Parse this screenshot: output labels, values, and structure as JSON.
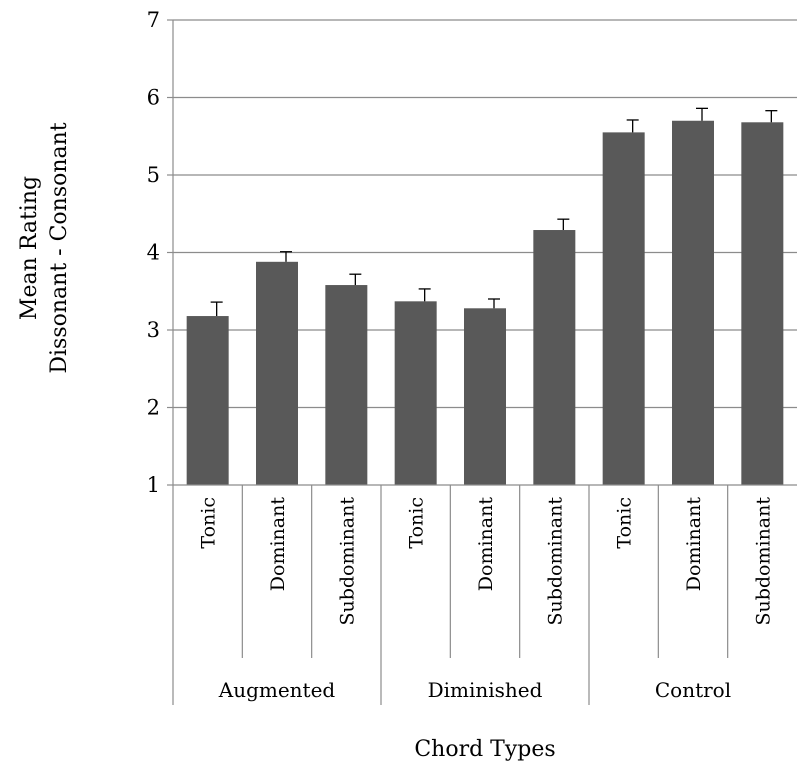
{
  "chart_data": {
    "type": "bar",
    "xlabel": "Chord Types",
    "ylabel": [
      "Mean Rating",
      "Dissonant - Consonant"
    ],
    "ylim": [
      1,
      7
    ],
    "yticks": [
      1,
      2,
      3,
      4,
      5,
      6,
      7
    ],
    "grid": true,
    "legend": "none",
    "bar_color": "#595959",
    "groups": [
      {
        "name": "Augmented",
        "categories": [
          "Tonic",
          "Dominant",
          "Subdominant"
        ]
      },
      {
        "name": "Diminished",
        "categories": [
          "Tonic",
          "Dominant",
          "Subdominant"
        ]
      },
      {
        "name": "Control",
        "categories": [
          "Tonic",
          "Dominant",
          "Subdominant"
        ]
      }
    ],
    "values": [
      3.18,
      3.88,
      3.58,
      3.37,
      3.28,
      4.29,
      5.55,
      5.7,
      5.68
    ],
    "errors": [
      0.18,
      0.13,
      0.14,
      0.16,
      0.12,
      0.14,
      0.16,
      0.16,
      0.15
    ]
  }
}
